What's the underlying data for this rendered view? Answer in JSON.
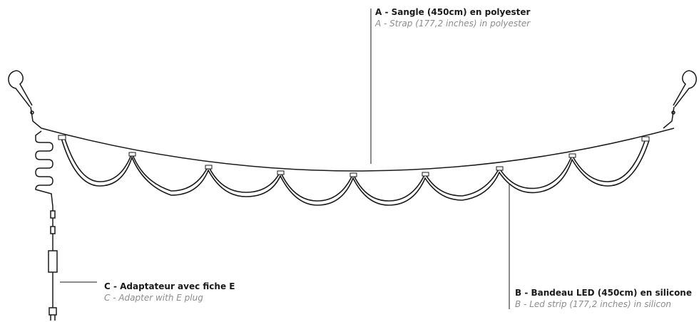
{
  "labels": {
    "a": {
      "fr": "A - Sangle (450cm) en polyester",
      "en": "A - Strap (177,2 inches) in polyester"
    },
    "b": {
      "fr": "B - Bandeau LED (450cm) en silicone",
      "en": "B - Led strip (177,2 inches) in silicon"
    },
    "c": {
      "fr": "C - Adaptateur avec fiche E",
      "en": "C - Adapter with E plug"
    }
  },
  "colors": {
    "line": "#1a1a1a",
    "english_text": "#8c8c8c"
  },
  "led_loops": 8
}
